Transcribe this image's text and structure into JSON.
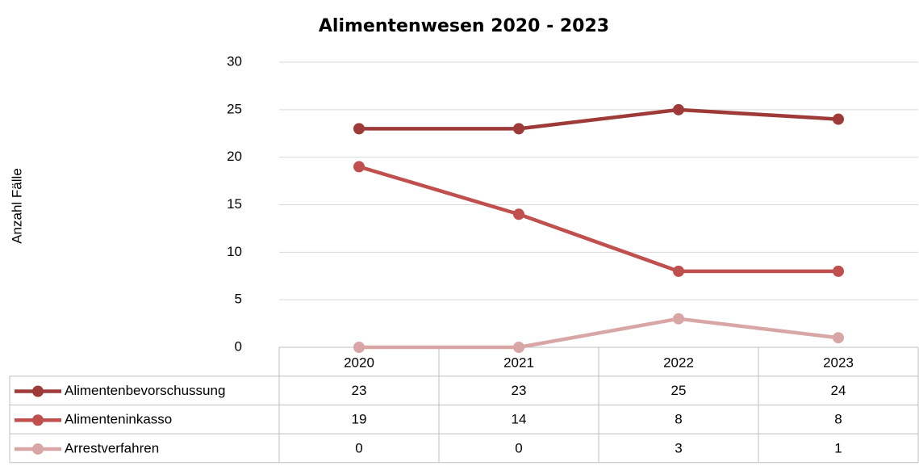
{
  "chart_data": {
    "type": "line",
    "title": "Alimentenwesen 2020 - 2023",
    "y_label": "Anzahl Fälle",
    "categories": [
      "2020",
      "2021",
      "2022",
      "2023"
    ],
    "series": [
      {
        "name": "Alimentenbevorschussung",
        "color": "#9e3a38",
        "values": [
          23,
          23,
          25,
          24
        ]
      },
      {
        "name": "Alimenteninkasso",
        "color": "#c0504d",
        "values": [
          19,
          14,
          8,
          8
        ]
      },
      {
        "name": "Arrestverfahren",
        "color": "#d8a6a5",
        "values": [
          0,
          0,
          3,
          1
        ]
      }
    ],
    "ylim": [
      0,
      30
    ],
    "yticks": [
      0,
      5,
      10,
      15,
      20,
      25,
      30
    ],
    "grid": true,
    "data_table": true
  }
}
